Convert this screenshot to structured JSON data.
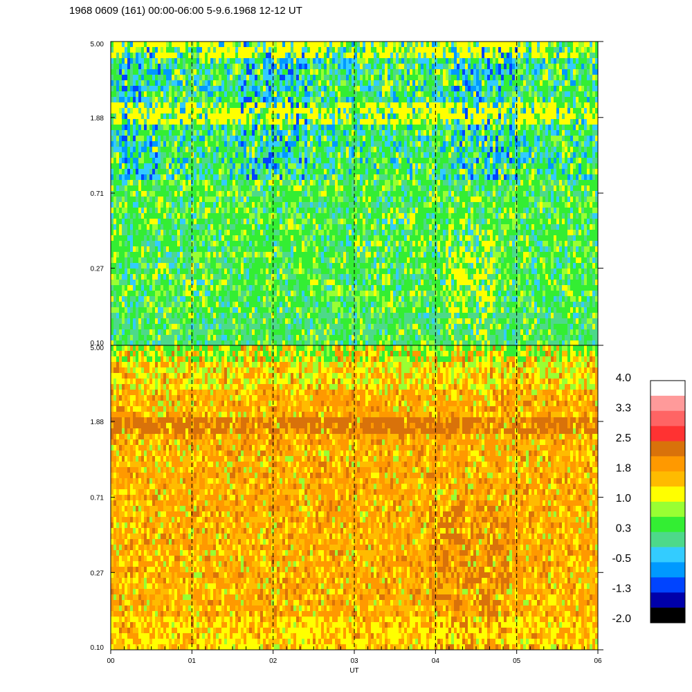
{
  "chart_data": {
    "type": "heatmap",
    "title": "1968 0609 (161) 00:00-06:00 5-9.6.1968  12-12 UT",
    "xlabel": "UT",
    "x_ticks": [
      "00",
      "01",
      "02",
      "03",
      "04",
      "05",
      "06"
    ],
    "xlim": [
      0,
      6
    ],
    "panels": [
      {
        "y_ticks": [
          "5.00",
          "1.88",
          "0.71",
          "0.27",
          "0.10"
        ],
        "ylim": [
          0.1,
          5.0
        ],
        "y_scale": "log",
        "dominant_levels": [
          "0.3",
          "-0.5",
          "1.0"
        ],
        "band_near_1_88": "1.0"
      },
      {
        "y_ticks": [
          "5.00",
          "1.88",
          "0.71",
          "0.27",
          "0.10"
        ],
        "ylim": [
          0.1,
          5.0
        ],
        "y_scale": "log",
        "dominant_levels": [
          "1.8",
          "2.5",
          "1.0"
        ],
        "band_near_1_88": "2.5"
      }
    ],
    "dashed_verticals_at": [
      1,
      2,
      3,
      4,
      5
    ],
    "colorbar": {
      "labels": [
        "4.0",
        "3.3",
        "2.5",
        "1.8",
        "1.0",
        "0.3",
        "-0.5",
        "-1.3",
        "-2.0"
      ],
      "colors": [
        "#ffffff",
        "#ff9a9a",
        "#ff6464",
        "#ff3232",
        "#d9720a",
        "#ff9900",
        "#ffbb00",
        "#ffff00",
        "#99ff33",
        "#33ee33",
        "#4dd98a",
        "#33ccff",
        "#0099ff",
        "#0044ff",
        "#0000aa",
        "#000000"
      ]
    }
  }
}
